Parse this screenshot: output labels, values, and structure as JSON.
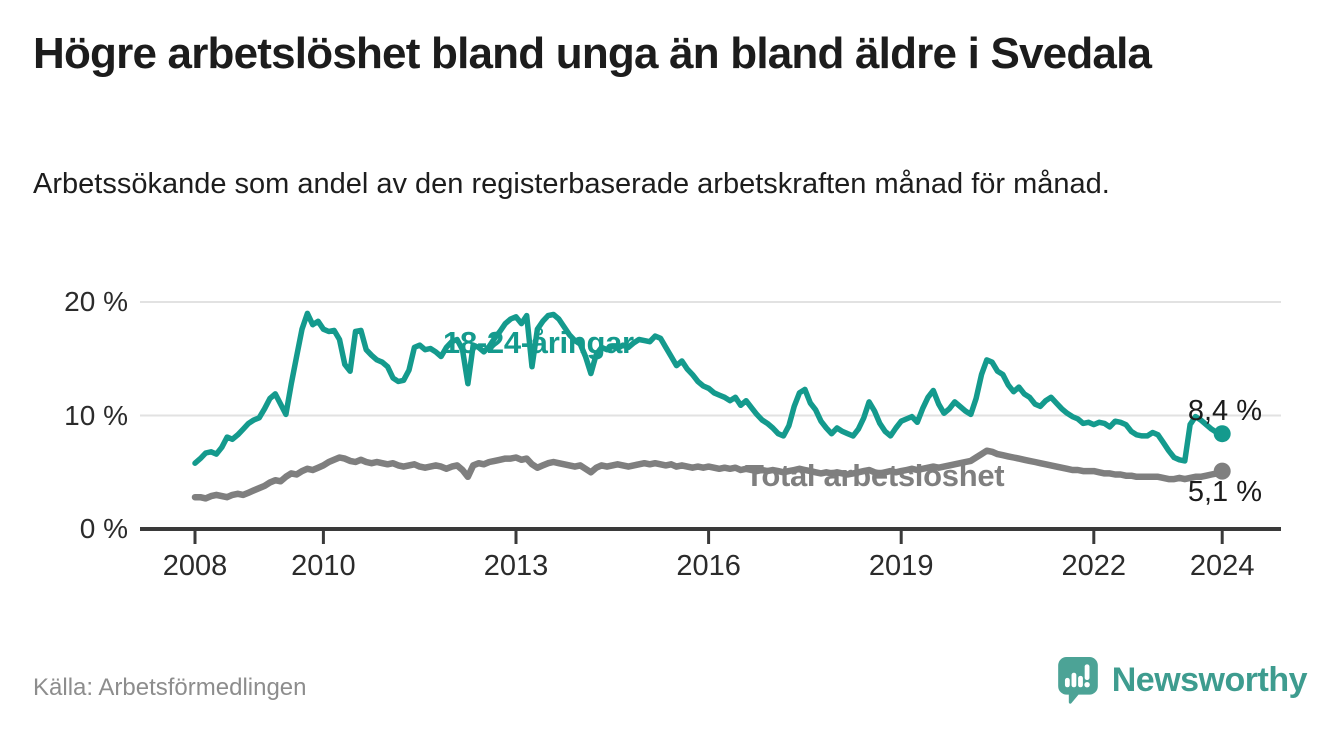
{
  "header": {
    "title": "Högre arbetslöshet bland unga än bland äldre i Svedala",
    "subtitle": "Arbetssökande som andel av den registerbaserade arbetskraften månad för månad."
  },
  "series_labels": {
    "young": "18-24-åringar",
    "total": "Total arbetslöshet"
  },
  "end_labels": {
    "young": "8,4 %",
    "total": "5,1 %"
  },
  "footer": {
    "source": "Källa: Arbetsförmedlingen",
    "brand": "Newsworthy"
  },
  "colors": {
    "young_line": "#149a8d",
    "total_line": "#7f7f7f",
    "axis": "#3a3a3a",
    "grid": "#e2e2e2",
    "title_text": "#1c1c1c",
    "tick_text": "#2b2b2b",
    "end_label_text": "#1c1c1c",
    "source_text": "#8d8d8d",
    "logo_icon": "#4CA396",
    "logo_text": "#3E9C8F"
  },
  "chart_data": {
    "type": "line",
    "title": "Högre arbetslöshet bland unga än bland äldre i Svedala",
    "xlabel": "",
    "ylabel": "Arbetssökande som andel av den registerbaserade arbetskraften",
    "unit": "%",
    "x_start_year": 2008,
    "x_step_months": 1,
    "ylim": [
      0,
      21
    ],
    "grid": "horizontal",
    "legend_position": "inline-labels",
    "y_ticks": [
      {
        "value": 0,
        "label": "0 %"
      },
      {
        "value": 10,
        "label": "10 %"
      },
      {
        "value": 20,
        "label": "20 %"
      }
    ],
    "x_ticks": [
      {
        "year": 2008,
        "label": "2008"
      },
      {
        "year": 2010,
        "label": "2010"
      },
      {
        "year": 2013,
        "label": "2013"
      },
      {
        "year": 2016,
        "label": "2016"
      },
      {
        "year": 2019,
        "label": "2019"
      },
      {
        "year": 2022,
        "label": "2022"
      },
      {
        "year": 2024,
        "label": "2024"
      }
    ],
    "series": [
      {
        "name": "18-24-åringar",
        "color": "#149a8d",
        "line_width": 5.5,
        "latest_value": 8.4,
        "latest_label": "8,4 %",
        "values": [
          5.8,
          6.2,
          6.7,
          6.8,
          6.6,
          7.2,
          8.1,
          7.9,
          8.3,
          8.8,
          9.3,
          9.6,
          9.8,
          10.6,
          11.5,
          11.9,
          11.0,
          10.1,
          12.8,
          15.2,
          17.6,
          19.0,
          18.0,
          18.3,
          17.6,
          17.4,
          17.5,
          16.7,
          14.5,
          13.9,
          17.4,
          17.5,
          15.8,
          15.3,
          14.9,
          14.7,
          14.3,
          13.3,
          13.0,
          13.1,
          14.0,
          16.0,
          16.2,
          15.8,
          15.9,
          15.6,
          15.2,
          16.0,
          16.5,
          16.7,
          15.8,
          12.8,
          16.2,
          16.0,
          15.6,
          16.1,
          16.8,
          17.4,
          18.1,
          18.5,
          18.7,
          18.1,
          18.8,
          14.3,
          17.6,
          18.3,
          18.8,
          18.9,
          18.5,
          17.8,
          17.1,
          16.6,
          16.3,
          15.2,
          13.7,
          15.4,
          16.0,
          15.8,
          16.1,
          15.9,
          16.2,
          16.0,
          16.4,
          16.7,
          16.6,
          16.5,
          17.0,
          16.8,
          16.0,
          15.2,
          14.4,
          14.8,
          14.1,
          13.6,
          13.0,
          12.6,
          12.4,
          12.0,
          11.8,
          11.6,
          11.3,
          11.6,
          10.9,
          11.3,
          10.7,
          10.1,
          9.6,
          9.3,
          8.9,
          8.4,
          8.2,
          9.1,
          10.8,
          12.0,
          12.3,
          11.1,
          10.5,
          9.5,
          8.9,
          8.4,
          8.9,
          8.6,
          8.4,
          8.2,
          8.8,
          9.8,
          11.2,
          10.4,
          9.3,
          8.6,
          8.2,
          8.9,
          9.5,
          9.7,
          9.9,
          9.4,
          10.6,
          11.6,
          12.2,
          11.0,
          10.2,
          10.6,
          11.2,
          10.8,
          10.4,
          10.1,
          11.5,
          13.6,
          14.9,
          14.7,
          13.9,
          13.6,
          12.7,
          12.1,
          12.5,
          11.9,
          11.6,
          11.0,
          10.8,
          11.3,
          11.6,
          11.1,
          10.6,
          10.2,
          9.9,
          9.7,
          9.3,
          9.4,
          9.2,
          9.4,
          9.3,
          9.0,
          9.5,
          9.4,
          9.2,
          8.6,
          8.3,
          8.2,
          8.2,
          8.5,
          8.3,
          7.6,
          6.9,
          6.3,
          6.1,
          6.0,
          9.2,
          9.9,
          9.6,
          9.2,
          8.8,
          8.5,
          8.4
        ]
      },
      {
        "name": "Total arbetslöshet",
        "color": "#7f7f7f",
        "line_width": 6.5,
        "latest_value": 5.1,
        "latest_label": "5,1 %",
        "values": [
          2.8,
          2.8,
          2.7,
          2.9,
          3.0,
          2.9,
          2.8,
          3.0,
          3.1,
          3.0,
          3.2,
          3.4,
          3.6,
          3.8,
          4.1,
          4.3,
          4.2,
          4.6,
          4.9,
          4.8,
          5.1,
          5.3,
          5.2,
          5.4,
          5.6,
          5.9,
          6.1,
          6.3,
          6.2,
          6.0,
          5.9,
          6.1,
          5.9,
          5.8,
          5.9,
          5.8,
          5.7,
          5.8,
          5.6,
          5.5,
          5.6,
          5.7,
          5.5,
          5.4,
          5.5,
          5.6,
          5.5,
          5.3,
          5.5,
          5.6,
          5.2,
          4.6,
          5.6,
          5.8,
          5.7,
          5.9,
          6.0,
          6.1,
          6.2,
          6.2,
          6.3,
          6.1,
          6.2,
          5.7,
          5.4,
          5.6,
          5.8,
          5.9,
          5.8,
          5.7,
          5.6,
          5.5,
          5.6,
          5.3,
          5.0,
          5.4,
          5.6,
          5.5,
          5.6,
          5.7,
          5.6,
          5.5,
          5.6,
          5.7,
          5.8,
          5.7,
          5.8,
          5.7,
          5.6,
          5.7,
          5.5,
          5.6,
          5.5,
          5.4,
          5.5,
          5.4,
          5.5,
          5.4,
          5.3,
          5.4,
          5.3,
          5.4,
          5.2,
          5.3,
          5.2,
          5.1,
          5.2,
          5.1,
          5.2,
          5.1,
          5.0,
          5.1,
          5.2,
          5.3,
          5.2,
          5.1,
          5.0,
          4.9,
          5.0,
          4.9,
          5.0,
          4.9,
          4.8,
          4.9,
          5.0,
          5.1,
          5.2,
          5.0,
          4.9,
          5.0,
          5.1,
          5.0,
          5.1,
          5.2,
          5.3,
          5.2,
          5.3,
          5.4,
          5.5,
          5.4,
          5.5,
          5.6,
          5.7,
          5.8,
          5.9,
          6.0,
          6.3,
          6.6,
          6.9,
          6.8,
          6.6,
          6.5,
          6.4,
          6.3,
          6.2,
          6.1,
          6.0,
          5.9,
          5.8,
          5.7,
          5.6,
          5.5,
          5.4,
          5.3,
          5.2,
          5.2,
          5.1,
          5.1,
          5.1,
          5.0,
          4.9,
          4.9,
          4.8,
          4.8,
          4.7,
          4.7,
          4.6,
          4.6,
          4.6,
          4.6,
          4.6,
          4.5,
          4.4,
          4.4,
          4.5,
          4.4,
          4.5,
          4.6,
          4.6,
          4.7,
          4.8,
          4.9,
          5.1
        ]
      }
    ]
  }
}
